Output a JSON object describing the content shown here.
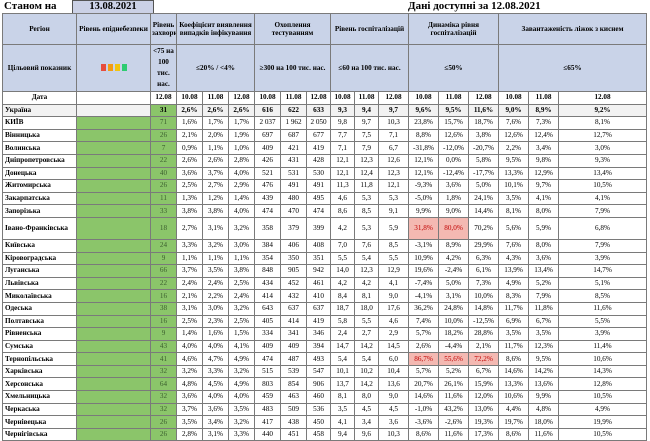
{
  "header": {
    "as_of_label": "Станом на",
    "as_of_date": "13.08.2021",
    "data_available": "Дані доступні за 12.08.2021"
  },
  "columns": {
    "region": "Регіон",
    "target": "Цільовий показник",
    "date": "Дата",
    "epi_level": "Рівень епіднебезпеки",
    "incidence": "Рівень захворюваності",
    "incidence_target": "<75 на 100 тис. нас.",
    "detection": "Коефіцієнт виявлення випадків інфікування",
    "detection_target": "≤20% / <4%",
    "testing": "Охоплення тестуванням",
    "testing_target": "≥300 на 100 тис. нас.",
    "hosp": "Рівень госпіталізацій",
    "hosp_target": "≤60 на 100 тис. нас.",
    "hosp_dyn": "Динаміка рівня госпіталізацій",
    "hosp_dyn_target": "≤50%",
    "oxygen": "Завантаженість ліжок з киснем",
    "oxygen_target": "≤65%"
  },
  "dates": {
    "d12": "12.08",
    "d10": "10.08",
    "d11": "11.08",
    "d12b": "12.08"
  },
  "legend_colors": [
    "#e74c3c",
    "#f39c12",
    "#f1c40f",
    "#2ecc71"
  ],
  "ukraine": {
    "name": "Україна",
    "v": [
      "31",
      "2,6%",
      "2,6%",
      "2,6%",
      "616",
      "622",
      "633",
      "9,3",
      "9,4",
      "9,7",
      "9,6%",
      "9,5%",
      "11,6%",
      "9,0%",
      "8,9%",
      "9,2%"
    ]
  },
  "rows": [
    {
      "name": "КИЇВ",
      "v": [
        "71",
        "1,6%",
        "1,7%",
        "1,7%",
        "2 037",
        "1 962",
        "2 050",
        "9,8",
        "9,7",
        "10,3",
        "23,8%",
        "15,7%",
        "18,7%",
        "7,6%",
        "7,3%",
        "8,1%"
      ]
    },
    {
      "name": "Вінницька",
      "v": [
        "26",
        "2,1%",
        "2,0%",
        "1,9%",
        "697",
        "687",
        "677",
        "7,7",
        "7,5",
        "7,1",
        "8,8%",
        "12,6%",
        "3,8%",
        "12,6%",
        "12,4%",
        "12,7%"
      ]
    },
    {
      "name": "Волинська",
      "v": [
        "7",
        "0,9%",
        "1,1%",
        "1,0%",
        "409",
        "421",
        "419",
        "7,1",
        "7,9",
        "6,7",
        "-31,8%",
        "-12,0%",
        "-20,7%",
        "2,2%",
        "3,4%",
        "3,0%"
      ]
    },
    {
      "name": "Дніпропетровська",
      "v": [
        "22",
        "2,6%",
        "2,6%",
        "2,8%",
        "426",
        "431",
        "428",
        "12,1",
        "12,3",
        "12,6",
        "12,1%",
        "0,0%",
        "5,8%",
        "9,5%",
        "9,8%",
        "9,3%"
      ]
    },
    {
      "name": "Донецька",
      "v": [
        "40",
        "3,6%",
        "3,7%",
        "4,0%",
        "521",
        "531",
        "530",
        "12,1",
        "12,4",
        "12,3",
        "12,1%",
        "-12,4%",
        "-17,7%",
        "13,3%",
        "12,9%",
        "13,4%"
      ]
    },
    {
      "name": "Житомирська",
      "v": [
        "26",
        "2,5%",
        "2,7%",
        "2,9%",
        "476",
        "491",
        "491",
        "11,3",
        "11,8",
        "12,1",
        "-9,3%",
        "3,6%",
        "5,0%",
        "10,1%",
        "9,7%",
        "10,5%"
      ]
    },
    {
      "name": "Закарпатська",
      "v": [
        "11",
        "1,3%",
        "1,2%",
        "1,4%",
        "439",
        "480",
        "495",
        "4,6",
        "5,3",
        "5,3",
        "-5,0%",
        "1,8%",
        "24,1%",
        "3,5%",
        "4,1%",
        "4,1%"
      ]
    },
    {
      "name": "Запорізька",
      "v": [
        "33",
        "3,8%",
        "3,8%",
        "4,0%",
        "474",
        "470",
        "474",
        "8,6",
        "8,5",
        "9,1",
        "9,9%",
        "9,0%",
        "14,4%",
        "8,1%",
        "8,0%",
        "7,9%"
      ]
    },
    {
      "name": "Івано-Франківська",
      "tall": true,
      "hi": [
        10,
        11
      ],
      "v": [
        "18",
        "2,7%",
        "3,1%",
        "3,2%",
        "358",
        "379",
        "399",
        "4,2",
        "5,3",
        "5,9",
        "31,8%",
        "80,0%",
        "70,2%",
        "5,6%",
        "5,9%",
        "6,8%"
      ]
    },
    {
      "name": "Київська",
      "v": [
        "24",
        "3,3%",
        "3,2%",
        "3,0%",
        "384",
        "406",
        "408",
        "7,0",
        "7,6",
        "8,5",
        "-3,1%",
        "8,9%",
        "29,9%",
        "7,6%",
        "8,0%",
        "7,9%"
      ]
    },
    {
      "name": "Кіровоградська",
      "v": [
        "9",
        "1,1%",
        "1,1%",
        "1,1%",
        "354",
        "350",
        "351",
        "5,5",
        "5,4",
        "5,5",
        "10,9%",
        "4,2%",
        "6,3%",
        "4,3%",
        "3,6%",
        "3,9%"
      ]
    },
    {
      "name": "Луганська",
      "v": [
        "66",
        "3,7%",
        "3,5%",
        "3,8%",
        "848",
        "905",
        "942",
        "14,0",
        "12,3",
        "12,9",
        "19,6%",
        "-2,4%",
        "6,1%",
        "13,9%",
        "13,4%",
        "14,7%"
      ]
    },
    {
      "name": "Львівська",
      "v": [
        "22",
        "2,4%",
        "2,4%",
        "2,5%",
        "434",
        "452",
        "461",
        "4,2",
        "4,2",
        "4,1",
        "-7,4%",
        "5,0%",
        "7,3%",
        "4,9%",
        "5,2%",
        "5,1%"
      ]
    },
    {
      "name": "Миколаївська",
      "v": [
        "16",
        "2,1%",
        "2,2%",
        "2,4%",
        "414",
        "432",
        "410",
        "8,4",
        "8,1",
        "9,0",
        "-4,1%",
        "3,1%",
        "10,0%",
        "8,3%",
        "7,9%",
        "8,5%"
      ]
    },
    {
      "name": "Одеська",
      "v": [
        "38",
        "3,1%",
        "3,0%",
        "3,2%",
        "643",
        "637",
        "637",
        "18,7",
        "18,0",
        "17,6",
        "36,2%",
        "24,8%",
        "14,8%",
        "11,7%",
        "11,8%",
        "11,6%"
      ]
    },
    {
      "name": "Полтавська",
      "v": [
        "16",
        "2,5%",
        "2,3%",
        "2,5%",
        "405",
        "414",
        "419",
        "5,8",
        "5,5",
        "4,6",
        "7,4%",
        "10,0%",
        "-12,5%",
        "6,9%",
        "6,7%",
        "5,5%"
      ]
    },
    {
      "name": "Рівненська",
      "v": [
        "9",
        "1,4%",
        "1,6%",
        "1,5%",
        "334",
        "341",
        "346",
        "2,4",
        "2,7",
        "2,9",
        "5,7%",
        "18,2%",
        "28,8%",
        "3,5%",
        "3,5%",
        "3,9%"
      ]
    },
    {
      "name": "Сумська",
      "v": [
        "43",
        "4,0%",
        "4,0%",
        "4,1%",
        "409",
        "409",
        "394",
        "14,7",
        "14,2",
        "14,5",
        "2,6%",
        "-4,4%",
        "2,1%",
        "11,7%",
        "12,3%",
        "11,4%"
      ]
    },
    {
      "name": "Тернопільська",
      "hi": [
        10,
        11,
        12
      ],
      "v": [
        "41",
        "4,6%",
        "4,7%",
        "4,9%",
        "474",
        "487",
        "493",
        "5,4",
        "5,4",
        "6,0",
        "86,7%",
        "55,6%",
        "72,2%",
        "8,6%",
        "9,5%",
        "10,6%"
      ]
    },
    {
      "name": "Харківська",
      "v": [
        "32",
        "3,2%",
        "3,3%",
        "3,2%",
        "515",
        "539",
        "547",
        "10,1",
        "10,2",
        "10,4",
        "5,7%",
        "5,2%",
        "6,7%",
        "14,6%",
        "14,2%",
        "14,3%"
      ]
    },
    {
      "name": "Херсонська",
      "v": [
        "64",
        "4,8%",
        "4,5%",
        "4,9%",
        "803",
        "854",
        "906",
        "13,7",
        "14,2",
        "13,6",
        "20,7%",
        "26,1%",
        "15,9%",
        "13,3%",
        "13,6%",
        "12,8%"
      ]
    },
    {
      "name": "Хмельницька",
      "v": [
        "32",
        "3,6%",
        "4,0%",
        "4,0%",
        "459",
        "463",
        "460",
        "8,1",
        "8,0",
        "9,0",
        "14,6%",
        "11,6%",
        "12,0%",
        "10,6%",
        "9,9%",
        "10,5%"
      ]
    },
    {
      "name": "Черкаська",
      "v": [
        "32",
        "3,7%",
        "3,6%",
        "3,5%",
        "483",
        "509",
        "536",
        "3,5",
        "4,5",
        "4,5",
        "-1,0%",
        "43,2%",
        "13,0%",
        "4,4%",
        "4,8%",
        "4,9%"
      ]
    },
    {
      "name": "Чернівецька",
      "v": [
        "26",
        "3,5%",
        "3,4%",
        "3,2%",
        "417",
        "438",
        "450",
        "4,1",
        "3,4",
        "3,6",
        "-3,6%",
        "-2,6%",
        "19,3%",
        "19,7%",
        "18,0%",
        "19,9%"
      ]
    },
    {
      "name": "Чернігівська",
      "v": [
        "26",
        "2,8%",
        "3,1%",
        "3,3%",
        "440",
        "451",
        "458",
        "9,4",
        "9,6",
        "10,3",
        "8,6%",
        "11,6%",
        "17,3%",
        "8,6%",
        "11,6%",
        "10,5%"
      ]
    }
  ]
}
